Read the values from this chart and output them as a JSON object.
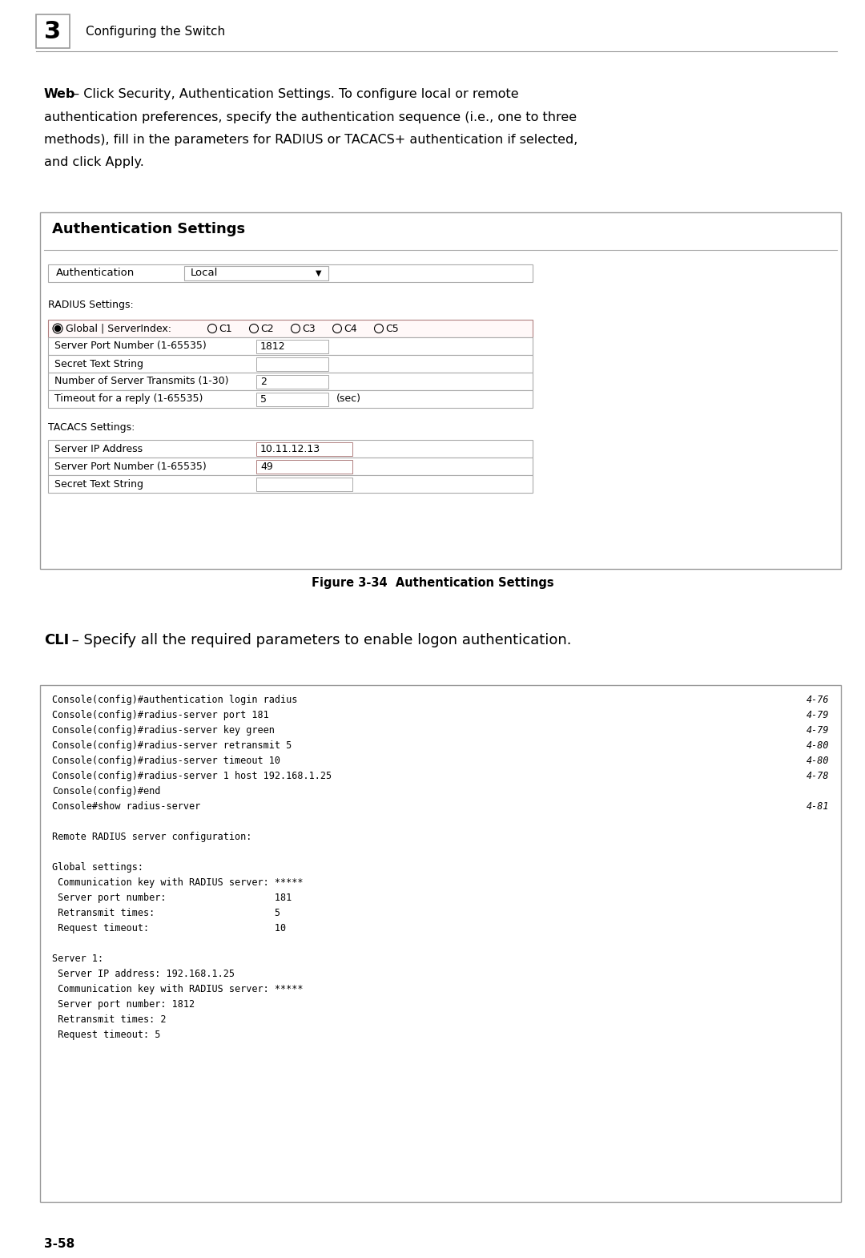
{
  "bg_color": "#ffffff",
  "header": {
    "number": "3",
    "text": "Configuring the Switch"
  },
  "web_text_lines": [
    {
      "text": "Web",
      "bold": true,
      "inline_rest": " – Click Security, Authentication Settings. To configure local or remote"
    },
    {
      "text": "authentication preferences, specify the authentication sequence (i.e., one to three",
      "bold": false
    },
    {
      "text": "methods), fill in the parameters for RADIUS or TACACS+ authentication if selected,",
      "bold": false
    },
    {
      "text": "and click Apply.",
      "bold": false
    }
  ],
  "auth_box": {
    "title": "Authentication Settings",
    "auth_label": "Authentication",
    "auth_value": "Local",
    "radius_label": "RADIUS Settings:",
    "global_label": "Global | ServerIndex:",
    "ci_labels": [
      "C1",
      "C2",
      "C3",
      "C4",
      "C5"
    ],
    "radius_rows": [
      {
        "label": "Server Port Number (1-65535)",
        "value": "1812",
        "extra": ""
      },
      {
        "label": "Secret Text String",
        "value": "",
        "extra": ""
      },
      {
        "label": "Number of Server Transmits (1-30)",
        "value": "2",
        "extra": ""
      },
      {
        "label": "Timeout for a reply (1-65535)",
        "value": "5",
        "extra": "(sec)"
      }
    ],
    "tacacs_label": "TACACS Settings:",
    "tacacs_rows": [
      {
        "label": "Server IP Address",
        "value": "10.11.12.13",
        "extra": ""
      },
      {
        "label": "Server Port Number (1-65535)",
        "value": "49",
        "extra": ""
      },
      {
        "label": "Secret Text String",
        "value": "",
        "extra": ""
      }
    ]
  },
  "figure_caption": "Figure 3-34  Authentication Settings",
  "cli_heading_bold": "CLI",
  "cli_heading_rest": " – Specify all the required parameters to enable logon authentication.",
  "cli_commands": [
    {
      "cmd": "Console(config)#authentication login radius",
      "ref": "4-76"
    },
    {
      "cmd": "Console(config)#radius-server port 181",
      "ref": "4-79"
    },
    {
      "cmd": "Console(config)#radius-server key green",
      "ref": "4-79"
    },
    {
      "cmd": "Console(config)#radius-server retransmit 5",
      "ref": "4-80"
    },
    {
      "cmd": "Console(config)#radius-server timeout 10",
      "ref": "4-80"
    },
    {
      "cmd": "Console(config)#radius-server 1 host 192.168.1.25",
      "ref": "4-78"
    },
    {
      "cmd": "Console(config)#end",
      "ref": ""
    },
    {
      "cmd": "Console#show radius-server",
      "ref": "4-81"
    },
    {
      "cmd": "",
      "ref": ""
    },
    {
      "cmd": "Remote RADIUS server configuration:",
      "ref": ""
    },
    {
      "cmd": "",
      "ref": ""
    },
    {
      "cmd": "Global settings:",
      "ref": ""
    },
    {
      "cmd": " Communication key with RADIUS server: *****",
      "ref": ""
    },
    {
      "cmd": " Server port number:                   181",
      "ref": ""
    },
    {
      "cmd": " Retransmit times:                     5",
      "ref": ""
    },
    {
      "cmd": " Request timeout:                      10",
      "ref": ""
    },
    {
      "cmd": "",
      "ref": ""
    },
    {
      "cmd": "Server 1:",
      "ref": ""
    },
    {
      "cmd": " Server IP address: 192.168.1.25",
      "ref": ""
    },
    {
      "cmd": " Communication key with RADIUS server: *****",
      "ref": ""
    },
    {
      "cmd": " Server port number: 1812",
      "ref": ""
    },
    {
      "cmd": " Retransmit times: 2",
      "ref": ""
    },
    {
      "cmd": " Request timeout: 5",
      "ref": ""
    }
  ],
  "page_number": "3-58"
}
